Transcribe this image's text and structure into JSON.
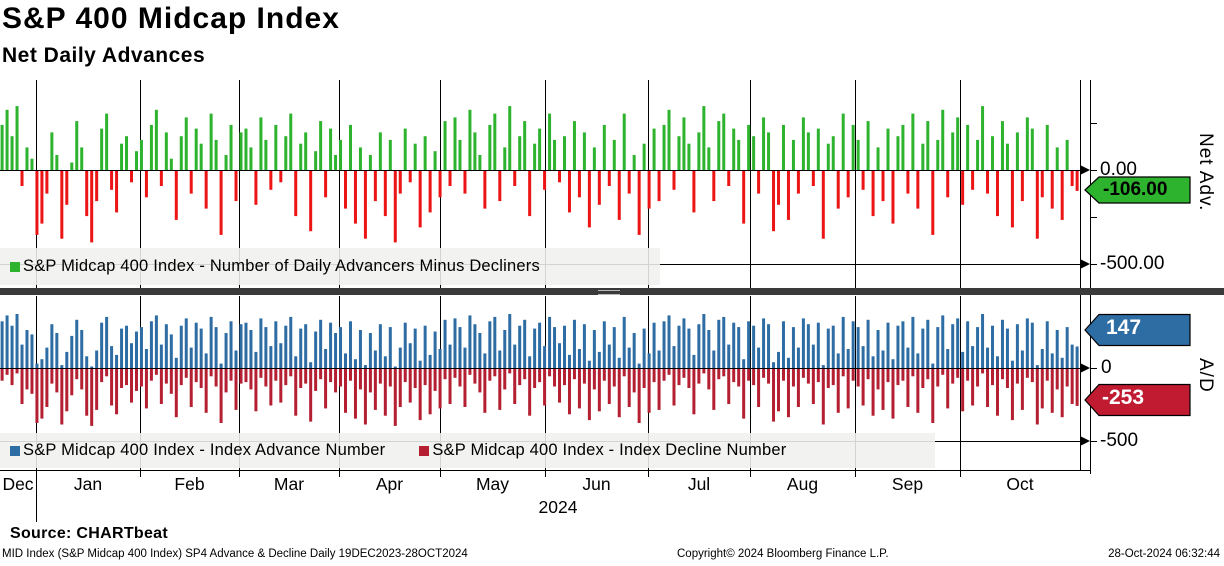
{
  "header": {
    "title": "S&P 400 Midcap Index",
    "subtitle": "Net Daily Advances"
  },
  "panel_net": {
    "axis_label": "Net Adv.",
    "ticks": [
      {
        "label": "0.00",
        "value": 0
      },
      {
        "label": "-500.00",
        "value": -500
      }
    ],
    "badge": {
      "label": "-106.00",
      "value": -106
    },
    "legend": "S&P Midcap 400 Index - Number of Daily Advancers Minus Decliners"
  },
  "panel_ad": {
    "axis_label": "A/D",
    "ticks": [
      {
        "label": "0",
        "value": 0
      },
      {
        "label": "-500",
        "value": -500
      }
    ],
    "advance_badge": {
      "label": "147",
      "value": 147
    },
    "decline_badge": {
      "label": "-253",
      "value": -253
    },
    "legends": [
      {
        "label": "S&P Midcap 400 Index - Index Advance Number"
      },
      {
        "label": "S&P Midcap 400 Index - Index Decline Number"
      }
    ]
  },
  "x_axis": {
    "months": [
      "Dec",
      "Jan",
      "Feb",
      "Mar",
      "Apr",
      "May",
      "Jun",
      "Jul",
      "Aug",
      "Sep",
      "Oct"
    ],
    "year": "2024"
  },
  "footer": {
    "source": "Source: CHARTbeat",
    "description": "MID Index (S&P Midcap 400 Index) SP4 Advance & Decline  Daily 19DEC2023-28OCT2024",
    "copyright": "Copyright© 2024 Bloomberg Finance L.P.",
    "timestamp": "28-Oct-2024 06:32:44"
  },
  "colors": {
    "advance_green": "#2db32d",
    "decline_red": "#ec1414",
    "advance_blue": "#2e6da4",
    "decline_dark_red": "#b41f31",
    "badge_green": "#2db32d",
    "badge_blue": "#2e6da4",
    "badge_red": "#c01b31",
    "splitter": "#3a3a3a",
    "grid": "#000000"
  },
  "chart_data": [
    {
      "type": "bar",
      "title": "S&P Midcap 400 Index - Number of Daily Advancers Minus Decliners",
      "ylabel": "Net Adv.",
      "ylim": [
        -600,
        480
      ],
      "yticks_labeled": [
        0,
        -500
      ],
      "yticks_minor": [
        250,
        -250
      ],
      "last_value": -106,
      "values": [
        240,
        320,
        180,
        340,
        -80,
        120,
        60,
        -340,
        -280,
        -120,
        200,
        80,
        -360,
        -180,
        40,
        260,
        120,
        -240,
        -380,
        -160,
        220,
        300,
        -100,
        -220,
        140,
        180,
        -60,
        100,
        160,
        -140,
        240,
        320,
        -80,
        200,
        60,
        -260,
        180,
        280,
        -120,
        220,
        140,
        -200,
        300,
        160,
        -340,
        80,
        240,
        -160,
        200,
        220,
        120,
        -180,
        280,
        160,
        -100,
        240,
        -60,
        180,
        300,
        -240,
        140,
        200,
        -320,
        100,
        260,
        -140,
        220,
        80,
        160,
        -200,
        240,
        -280,
        120,
        -360,
        80,
        -160,
        200,
        -240,
        160,
        -380,
        -120,
        220,
        -60,
        140,
        -300,
        180,
        -220,
        100,
        -140,
        260,
        -80,
        280,
        160,
        -120,
        320,
        200,
        80,
        -200,
        240,
        300,
        -160,
        120,
        340,
        -80,
        180,
        260,
        -240,
        140,
        220,
        -100,
        300,
        160,
        -60,
        180,
        -220,
        260,
        -140,
        200,
        -300,
        120,
        -180,
        240,
        -80,
        160,
        -260,
        300,
        -120,
        80,
        -340,
        140,
        -200,
        220,
        -160,
        240,
        320,
        -100,
        180,
        280,
        140,
        -220,
        200,
        340,
        120,
        -160,
        260,
        300,
        -80,
        220,
        160,
        -280,
        240,
        180,
        -120,
        280,
        200,
        -320,
        -180,
        240,
        -260,
        160,
        -120,
        280,
        200,
        -80,
        220,
        -360,
        140,
        180,
        -200,
        300,
        -140,
        240,
        160,
        -100,
        260,
        -240,
        120,
        -160,
        220,
        -280,
        180,
        240,
        -120,
        300,
        -200,
        140,
        260,
        -340,
        160,
        320,
        -140,
        200,
        280,
        -180,
        240,
        -100,
        160,
        340,
        -120,
        180,
        -240,
        260,
        140,
        -300,
        200,
        -160,
        280,
        220,
        -360,
        -140,
        240,
        -200,
        120,
        -260,
        160,
        -80,
        -106
      ]
    },
    {
      "type": "bar",
      "ylabel": "A/D",
      "ylim": [
        -700,
        490
      ],
      "yticks_labeled": [
        0,
        -500
      ],
      "yticks_minor": [
        250,
        -250
      ],
      "x_range": [
        "19DEC2023",
        "28OCT2024"
      ],
      "series": [
        {
          "name": "S&P Midcap 400 Index - Index Advance Number",
          "color": "#2e6da4",
          "last_value": 147,
          "values": [
            320,
            360,
            290,
            370,
            160,
            260,
            230,
            30,
            60,
            140,
            300,
            240,
            20,
            110,
            220,
            330,
            260,
            80,
            10,
            120,
            310,
            350,
            150,
            90,
            270,
            290,
            170,
            250,
            280,
            130,
            320,
            360,
            160,
            300,
            230,
            70,
            290,
            340,
            140,
            310,
            270,
            100,
            350,
            280,
            30,
            240,
            320,
            120,
            300,
            310,
            260,
            110,
            340,
            280,
            150,
            320,
            170,
            290,
            350,
            80,
            270,
            300,
            40,
            250,
            330,
            130,
            310,
            240,
            280,
            100,
            320,
            60,
            260,
            20,
            240,
            120,
            300,
            80,
            280,
            10,
            140,
            310,
            170,
            270,
            50,
            290,
            90,
            250,
            130,
            330,
            160,
            340,
            280,
            140,
            360,
            300,
            240,
            100,
            320,
            350,
            120,
            260,
            370,
            160,
            290,
            330,
            80,
            270,
            310,
            150,
            350,
            280,
            170,
            290,
            90,
            330,
            130,
            300,
            50,
            260,
            110,
            320,
            160,
            280,
            70,
            350,
            140,
            240,
            30,
            270,
            100,
            310,
            120,
            320,
            360,
            150,
            290,
            340,
            270,
            90,
            300,
            370,
            260,
            120,
            330,
            350,
            160,
            310,
            280,
            60,
            320,
            290,
            140,
            340,
            300,
            40,
            110,
            320,
            70,
            280,
            140,
            340,
            300,
            160,
            310,
            20,
            270,
            290,
            100,
            350,
            130,
            320,
            280,
            150,
            330,
            80,
            260,
            120,
            310,
            60,
            290,
            320,
            140,
            350,
            100,
            270,
            330,
            30,
            280,
            360,
            130,
            300,
            340,
            110,
            320,
            150,
            280,
            370,
            140,
            290,
            80,
            330,
            270,
            50,
            300,
            120,
            340,
            310,
            20,
            130,
            320,
            100,
            260,
            70,
            280,
            160,
            147
          ]
        },
        {
          "name": "S&P Midcap 400 Index - Index Decline Number",
          "color": "#b41f31",
          "last_value": -253,
          "values": [
            -80,
            -40,
            -110,
            -30,
            -240,
            -140,
            -170,
            -370,
            -340,
            -260,
            -100,
            -160,
            -380,
            -290,
            -180,
            -70,
            -140,
            -320,
            -390,
            -280,
            -90,
            -50,
            -250,
            -310,
            -130,
            -110,
            -230,
            -150,
            -120,
            -270,
            -80,
            -40,
            -240,
            -100,
            -170,
            -330,
            -110,
            -60,
            -260,
            -90,
            -130,
            -300,
            -50,
            -120,
            -370,
            -160,
            -80,
            -280,
            -100,
            -90,
            -140,
            -290,
            -60,
            -120,
            -250,
            -80,
            -230,
            -110,
            -50,
            -320,
            -130,
            -100,
            -360,
            -150,
            -70,
            -270,
            -90,
            -160,
            -120,
            -300,
            -80,
            -340,
            -140,
            -380,
            -160,
            -280,
            -100,
            -320,
            -120,
            -390,
            -260,
            -90,
            -230,
            -130,
            -350,
            -110,
            -310,
            -150,
            -270,
            -70,
            -240,
            -60,
            -120,
            -260,
            -40,
            -100,
            -160,
            -300,
            -80,
            -50,
            -280,
            -140,
            -30,
            -240,
            -110,
            -70,
            -320,
            -130,
            -90,
            -250,
            -50,
            -120,
            -230,
            -110,
            -310,
            -70,
            -270,
            -100,
            -350,
            -140,
            -290,
            -80,
            -240,
            -120,
            -330,
            -50,
            -260,
            -160,
            -370,
            -130,
            -300,
            -90,
            -280,
            -80,
            -40,
            -250,
            -110,
            -60,
            -130,
            -310,
            -100,
            -30,
            -140,
            -280,
            -70,
            -50,
            -240,
            -90,
            -120,
            -340,
            -80,
            -110,
            -260,
            -60,
            -100,
            -360,
            -290,
            -80,
            -330,
            -120,
            -260,
            -60,
            -100,
            -240,
            -90,
            -380,
            -130,
            -110,
            -300,
            -50,
            -270,
            -80,
            -120,
            -250,
            -70,
            -320,
            -140,
            -280,
            -90,
            -340,
            -110,
            -80,
            -260,
            -50,
            -300,
            -130,
            -70,
            -370,
            -120,
            -40,
            -270,
            -100,
            -60,
            -290,
            -80,
            -250,
            -120,
            -30,
            -260,
            -110,
            -320,
            -70,
            -130,
            -350,
            -100,
            -280,
            -60,
            -90,
            -380,
            -270,
            -80,
            -300,
            -140,
            -330,
            -120,
            -240,
            -253
          ]
        }
      ]
    }
  ]
}
